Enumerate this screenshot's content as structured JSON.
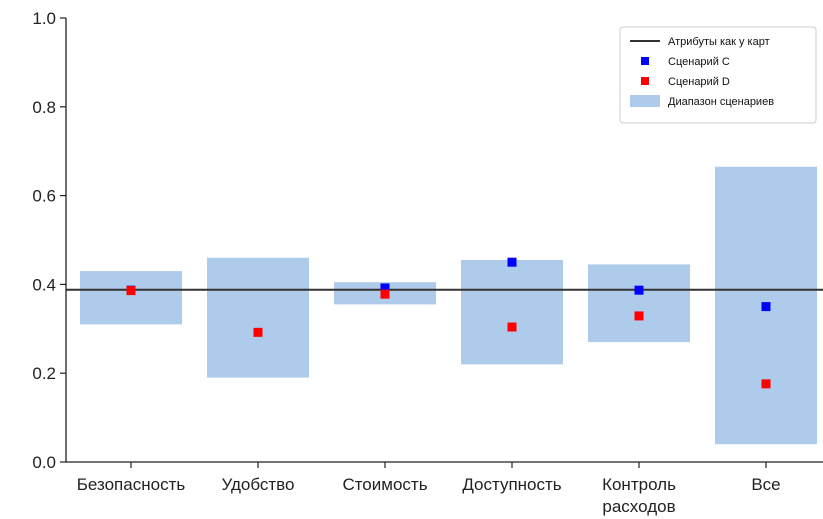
{
  "chart_data": {
    "type": "scatter",
    "title": "",
    "xlabel": "",
    "ylabel": "",
    "ylim": [
      0.0,
      1.0
    ],
    "yticks": [
      "0.0",
      "0.2",
      "0.4",
      "0.6",
      "0.8",
      "1.0"
    ],
    "categories": [
      [
        "Безопасность"
      ],
      [
        "Удобство"
      ],
      [
        "Стоимость"
      ],
      [
        "Доступность"
      ],
      [
        "Контроль",
        "расходов"
      ],
      [
        "Все"
      ]
    ],
    "baseline": {
      "name": "Атрибуты как у карт",
      "value": 0.388,
      "color": "#333333"
    },
    "range": {
      "name": "Диапазон сценариев",
      "color": "#aecbeb",
      "low": [
        0.31,
        0.19,
        0.355,
        0.22,
        0.27,
        0.04
      ],
      "high": [
        0.43,
        0.46,
        0.405,
        0.455,
        0.445,
        0.665
      ]
    },
    "series": [
      {
        "name": "Сценарий C",
        "color": "#0000ff",
        "values": [
          0.387,
          null,
          0.392,
          0.45,
          0.387,
          0.35
        ]
      },
      {
        "name": "Сценарий D",
        "color": "#ff0000",
        "values": [
          0.386,
          0.292,
          0.378,
          0.304,
          0.329,
          0.176
        ]
      }
    ],
    "legend_position": "top-right",
    "grid": false
  }
}
